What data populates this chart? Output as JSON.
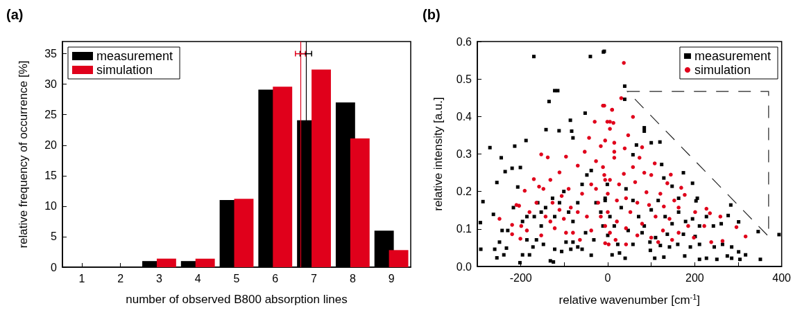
{
  "chart_data": [
    {
      "type": "bar",
      "title": "(a)",
      "xlabel": "number of observed B800 absorption lines",
      "ylabel": "relative frequency of occurrence [%]",
      "x": [
        1,
        2,
        3,
        4,
        5,
        6,
        7,
        8,
        9
      ],
      "xlim": [
        0.5,
        9.5
      ],
      "xticks": [
        1,
        2,
        3,
        4,
        5,
        6,
        7,
        8,
        9
      ],
      "ylim": [
        0,
        37
      ],
      "yticks": [
        0,
        5,
        10,
        15,
        20,
        25,
        30,
        35
      ],
      "legend": "top left",
      "ref_lines": [
        {
          "axis": "x",
          "value": 6.79,
          "color": "#000000"
        },
        {
          "axis": "x",
          "value": 6.65,
          "color": "#e0001b"
        }
      ],
      "series": [
        {
          "name": "measurement",
          "color": "#000000",
          "values": [
            0,
            0,
            1.0,
            1.0,
            11.0,
            29.1,
            24.1,
            27.0,
            6.0
          ]
        },
        {
          "name": "simulation",
          "color": "#e0001b",
          "values": [
            0,
            0,
            1.4,
            1.4,
            11.2,
            29.6,
            32.4,
            21.1,
            2.8
          ]
        },
        {
          "type": "scatter",
          "color": "#000000",
          "x": [
            6.79
          ],
          "values": [
            35
          ],
          "xerrors": [
            0.15
          ]
        },
        {
          "type": "scatter",
          "color": "#e0001b",
          "x": [
            6.65
          ],
          "values": [
            35
          ],
          "xerrors": [
            0.13
          ]
        }
      ]
    },
    {
      "type": "scatter",
      "title": "(b)",
      "xlabel": "relative wavenumber [cm$^{-1}$]",
      "ylabel": "relative intensity [a.u.]",
      "xlim": [
        -300,
        400
      ],
      "xticks": [
        -200,
        {
          "value": -100,
          "label": null
        },
        0,
        {
          "value": 100,
          "label": null
        },
        200,
        {
          "value": 300,
          "label": null
        },
        400
      ],
      "ylim": [
        0,
        0.6
      ],
      "yticks": [
        {
          "value": 0,
          "label": "0.0"
        },
        {
          "value": 0.1,
          "label": "0.1"
        },
        {
          "value": 0.2,
          "label": "0.2"
        },
        {
          "value": 0.3,
          "label": "0.3"
        },
        {
          "value": 0.4,
          "label": "0.4"
        },
        {
          "value": 0.5,
          "label": "0.5"
        },
        {
          "value": 0.6,
          "label": "0.6"
        }
      ],
      "legend": "top right",
      "series": [
        {
          "name": "measurement",
          "color": "#000000",
          "marker": "square",
          "x": [
            -293,
            -287,
            -271,
            -263,
            -255,
            -245,
            -236,
            -220,
            -214,
            -207,
            -201,
            -188,
            -170,
            -142,
            -135,
            -122,
            -115,
            -112,
            -86,
            -83,
            -80,
            -52,
            -40,
            -10,
            -292,
            -260,
            -255,
            -239,
            -233,
            -249,
            -243,
            -230,
            -217,
            -202,
            -196,
            -186,
            -180,
            -172,
            -164,
            -161,
            -153,
            -148,
            -132,
            -125,
            -122,
            -106,
            -96,
            -85,
            -80,
            -69,
            -59,
            -51,
            -38,
            -32,
            -127,
            -122,
            -111,
            -101,
            -90,
            -80,
            -69,
            -59,
            -48,
            -38,
            -27,
            -16,
            -6,
            -1,
            -169,
            -153,
            -143,
            -186,
            -196,
            -8,
            39,
            39,
            84,
            84,
            100,
            120,
            66,
            58,
            124,
            174,
            195,
            129,
            148,
            163,
            206,
            203,
            283,
            277,
            301,
            261,
            346,
            394,
            10,
            27,
            40,
            98,
            108,
            129,
            177,
            211,
            227,
            251,
            275,
            285,
            301,
            304,
            317,
            351,
            23,
            58,
            97,
            121,
            142,
            161,
            190,
            211,
            245,
            264,
            285,
            -6,
            5,
            15,
            31,
            42,
            58,
            71,
            84,
            100,
            116,
            132,
            148,
            163,
            179,
            195,
            211,
            227,
            243,
            -11,
            0,
            47,
            79,
            110,
            137,
            174,
            201
          ],
          "values": [
            0.117,
            0.173,
            0.317,
            0.139,
            0.224,
            0.29,
            0.253,
            0.262,
            0.321,
            0.212,
            0.264,
            0.336,
            0.56,
            0.365,
            0.44,
            0.469,
            0.469,
            0.362,
            0.39,
            0.361,
            0.343,
            0.409,
            0.56,
            0.572,
            0.046,
            0.046,
            0.023,
            0.031,
            0.049,
            0.065,
            0.096,
            0.096,
            0.157,
            0.01,
            0.031,
            0.071,
            0.031,
            0.052,
            0.071,
            0.17,
            0.108,
            0.059,
            0.015,
            0.012,
            0.046,
            0.04,
            0.065,
            0.046,
            0.065,
            0.052,
            0.046,
            0.09,
            0.03,
            0.071,
            0.182,
            0.133,
            0.17,
            0.2,
            0.145,
            0.12,
            0.17,
            0.219,
            0.244,
            0.256,
            0.17,
            0.145,
            0.182,
            0.219,
            0.133,
            0.145,
            0.157,
            0.133,
            0.12,
            0.574,
            0.481,
            0.446,
            0.37,
            0.361,
            0.33,
            0.332,
            0.324,
            0.298,
            0.272,
            0.25,
            0.222,
            0.236,
            0.214,
            0.182,
            0.182,
            0.175,
            0.164,
            0.136,
            0.119,
            0.114,
            0.093,
            0.085,
            0.031,
            0.036,
            0.022,
            0.043,
            0.022,
            0.025,
            0.028,
            0.019,
            0.022,
            0.019,
            0.028,
            0.022,
            0.039,
            0.019,
            0.031,
            0.019,
            0.059,
            0.059,
            0.065,
            0.056,
            0.052,
            0.059,
            0.052,
            0.059,
            0.052,
            0.059,
            0.052,
            0.176,
            0.133,
            0.108,
            0.157,
            0.207,
            0.176,
            0.133,
            0.108,
            0.151,
            0.176,
            0.133,
            0.114,
            0.145,
            0.12,
            0.127,
            0.108,
            0.133,
            0.108,
            0.108,
            0.083,
            0.096,
            0.09,
            0.077,
            0.086,
            0.086,
            0.08
          ]
        },
        {
          "name": "simulation",
          "color": "#e0001b",
          "marker": "circle",
          "x": [
            -249,
            -220,
            -220,
            -210,
            -204,
            -199,
            -191,
            -180,
            -170,
            -164,
            -153,
            -148,
            -143,
            -138,
            -132,
            -127,
            -122,
            -111,
            -106,
            -101,
            -96,
            -90,
            -85,
            -80,
            -69,
            -64,
            -59,
            -53,
            -48,
            -43,
            -38,
            -30,
            -27,
            -22,
            -16,
            -11,
            -8,
            -6,
            -1,
            2,
            10,
            15,
            -96,
            -111,
            -132,
            -153,
            -69,
            -38,
            -27,
            -16,
            -6,
            -158,
            -186,
            -201,
            37,
            31,
            -8,
            10,
            58,
            5,
            13,
            5,
            47,
            -6,
            15,
            39,
            79,
            73,
            15,
            108,
            -11,
            58,
            84,
            145,
            100,
            37,
            63,
            137,
            169,
            5,
            26,
            89,
            121,
            177,
            0,
            42,
            153,
            21,
            68,
            95,
            129,
            227,
            163,
            201,
            52,
            0,
            235,
            259,
            110,
            142,
            21,
            79,
            185,
            222,
            296,
            42,
            127,
            5,
            68,
            163,
            100,
            238,
            317,
            42,
            148,
            198,
            264,
            -6,
            18,
            116
          ],
          "values": [
            0.127,
            0.111,
            0.086,
            0.164,
            0.162,
            0.108,
            0.202,
            0.145,
            0.233,
            0.17,
            0.299,
            0.207,
            0.133,
            0.291,
            0.231,
            0.17,
            0.102,
            0.251,
            0.188,
            0.127,
            0.293,
            0.207,
            0.157,
            0.09,
            0.269,
            0.071,
            0.194,
            0.306,
            0.133,
            0.343,
            0.219,
            0.386,
            0.281,
            0.17,
            0.321,
            0.429,
            0.244,
            0.108,
            0.386,
            0.059,
            0.418,
            0.306,
            0.09,
            0.151,
            0.12,
            0.083,
            0.145,
            0.096,
            0.207,
            0.133,
            0.231,
            0.213,
            0.096,
            0.074,
            0.543,
            0.449,
            0.429,
            0.418,
            0.399,
            0.386,
            0.383,
            0.367,
            0.35,
            0.336,
            0.33,
            0.315,
            0.318,
            0.29,
            0.29,
            0.275,
            0.265,
            0.265,
            0.25,
            0.245,
            0.244,
            0.247,
            0.225,
            0.222,
            0.21,
            0.231,
            0.219,
            0.198,
            0.194,
            0.191,
            0.194,
            0.182,
            0.176,
            0.176,
            0.17,
            0.164,
            0.16,
            0.154,
            0.157,
            0.145,
            0.145,
            0.145,
            0.142,
            0.133,
            0.133,
            0.127,
            0.12,
            0.114,
            0.108,
            0.108,
            0.105,
            0.102,
            0.096,
            0.09,
            0.083,
            0.09,
            0.077,
            0.065,
            0.08,
            0.059,
            0.071,
            0.077,
            0.068,
            0.062,
            0.071,
            0.065
          ]
        }
      ]
    }
  ]
}
